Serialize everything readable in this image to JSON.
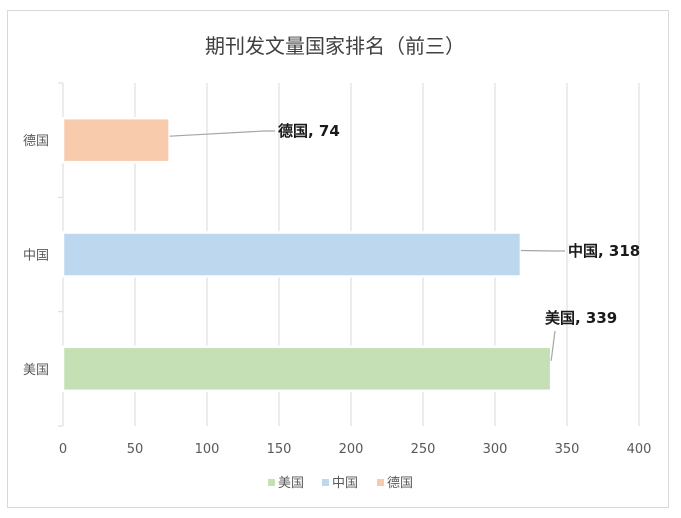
{
  "chart_data": {
    "type": "bar",
    "orientation": "horizontal",
    "title": "期刊发文量国家排名（前三）",
    "categories": [
      "美国",
      "中国",
      "德国"
    ],
    "values": [
      339,
      318,
      74
    ],
    "data_labels": [
      "美国, 339",
      "中国, 318",
      "德国, 74"
    ],
    "xlim": [
      0,
      400
    ],
    "xticks": [
      0,
      50,
      100,
      150,
      200,
      250,
      300,
      350,
      400
    ],
    "grid": "vertical",
    "legend_position": "bottom",
    "legend": [
      "美国",
      "中国",
      "德国"
    ],
    "colors": [
      "#c5e0b4",
      "#bdd7ee",
      "#f8cbad"
    ]
  }
}
